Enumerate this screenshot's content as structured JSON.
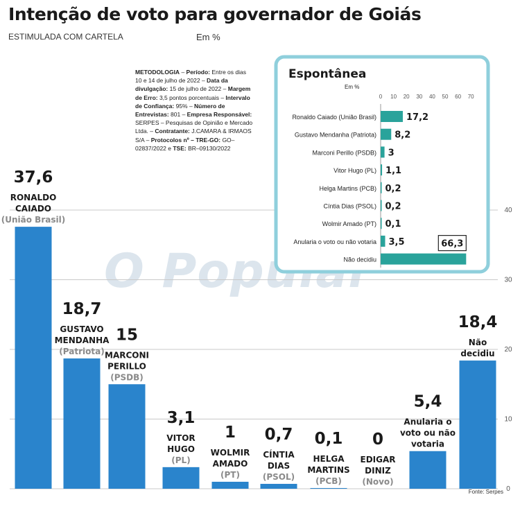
{
  "title": "Intenção de voto para governador de Goiás",
  "subtitle": "ESTIMULADA COM CARTELA",
  "unit": "Em %",
  "methodology": [
    {
      "b": "METODOLOGIA",
      "t": " – "
    },
    {
      "b": "Período:",
      "t": " Entre os dias 10 e 14 de julho de 2022 – "
    },
    {
      "b": "Data da divulgação:",
      "t": " 15 de julho de 2022 – "
    },
    {
      "b": "Margem de Erro:",
      "t": " 3,5 pontos porcentuais – "
    },
    {
      "b": "Intervalo de Confiança:",
      "t": " 95% – "
    },
    {
      "b": "Número de Entrevistas:",
      "t": " 801 – "
    },
    {
      "b": "Empresa Responsável:",
      "t": " SERPES – Pesquisas de Opinião e Mercado Ltda. – "
    },
    {
      "b": "Contratante:",
      "t": " J.CAMARA & IRMAOS S/A – "
    },
    {
      "b": "Protocolos nº – TRE-GO:",
      "t": " GO–02837/2022 e "
    },
    {
      "b": "TSE:",
      "t": " BR–09130/2022"
    }
  ],
  "watermark": "O Popular",
  "source": "Fonte: Serpes",
  "colors": {
    "bar_main": "#2a84cc",
    "bar_inset": "#2aa39b",
    "inset_border": "#8fcfdc",
    "grid": "#c8c8c8"
  },
  "chart_data": [
    {
      "type": "bar",
      "title": "Intenção de voto para governador de Goiás",
      "subtitle": "ESTIMULADA COM CARTELA",
      "ylabel": "Em %",
      "ylim": [
        0,
        40
      ],
      "yticks": [
        "0",
        "10",
        "20",
        "30",
        "40"
      ],
      "grid": true,
      "categories": [
        {
          "name": [
            "RONALDO",
            "CAIADO"
          ],
          "party": "(União Brasil)",
          "value": 37.6,
          "label": "37,6"
        },
        {
          "name": [
            "GUSTAVO",
            "MENDANHA"
          ],
          "party": "(Patriota)",
          "value": 18.7,
          "label": "18,7"
        },
        {
          "name": [
            "MARCONI",
            "PERILLO"
          ],
          "party": "(PSDB)",
          "value": 15,
          "label": "15"
        },
        {
          "name": [
            "VITOR",
            "HUGO"
          ],
          "party": "(PL)",
          "value": 3.1,
          "label": "3,1"
        },
        {
          "name": [
            "WOLMIR",
            "AMADO"
          ],
          "party": "(PT)",
          "value": 1,
          "label": "1"
        },
        {
          "name": [
            "CÍNTIA",
            "DIAS"
          ],
          "party": "(PSOL)",
          "value": 0.7,
          "label": "0,7"
        },
        {
          "name": [
            "HELGA",
            "MARTINS"
          ],
          "party": "(PCB)",
          "value": 0.1,
          "label": "0,1"
        },
        {
          "name": [
            "EDIGAR",
            "DINIZ"
          ],
          "party": "(Novo)",
          "value": 0,
          "label": "0"
        },
        {
          "name": [
            "Anularia o",
            "voto ou não",
            "votaria"
          ],
          "party": "",
          "value": 5.4,
          "label": "5,4"
        },
        {
          "name": [
            "Não",
            "decidiu"
          ],
          "party": "",
          "value": 18.4,
          "label": "18,4"
        }
      ]
    },
    {
      "type": "bar",
      "orientation": "horizontal",
      "title": "Espontânea",
      "xlabel": "Em %",
      "xlim": [
        0,
        70
      ],
      "xticks": [
        "0",
        "10",
        "20",
        "30",
        "40",
        "50",
        "60",
        "70"
      ],
      "categories": [
        {
          "name": "Ronaldo Caiado (União Brasil)",
          "value": 17.2,
          "label": "17,2"
        },
        {
          "name": "Gustavo Mendanha (Patriota)",
          "value": 8.2,
          "label": "8,2"
        },
        {
          "name": "Marconi Perillo (PSDB)",
          "value": 3,
          "label": "3"
        },
        {
          "name": "Vitor Hugo (PL)",
          "value": 1.1,
          "label": "1,1"
        },
        {
          "name": "Helga Martins (PCB)",
          "value": 0.2,
          "label": "0,2"
        },
        {
          "name": "Cíntia Dias (PSOL)",
          "value": 0.2,
          "label": "0,2"
        },
        {
          "name": "Wolmir Amado (PT)",
          "value": 0.1,
          "label": "0,1"
        },
        {
          "name": "Anularia o voto ou não votaria",
          "value": 3.5,
          "label": "3,5"
        },
        {
          "name": "Não decidiu",
          "value": 66.3,
          "label": "66,3",
          "boxed": true
        }
      ]
    }
  ]
}
